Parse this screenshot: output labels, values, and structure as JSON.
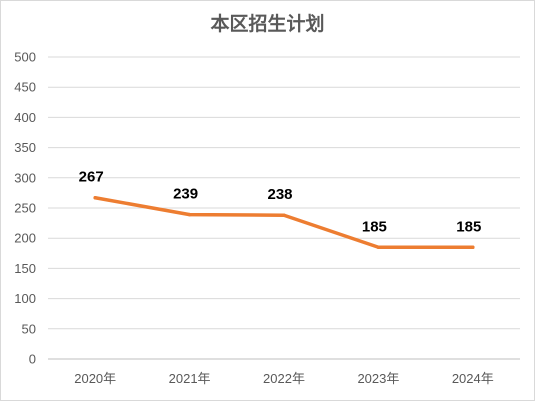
{
  "chart_data": {
    "type": "line",
    "title": "本区招生计划",
    "categories": [
      "2020年",
      "2021年",
      "2022年",
      "2023年",
      "2024年"
    ],
    "series": [
      {
        "values": [
          267,
          239,
          238,
          185,
          185
        ],
        "color": "#ed7d31"
      }
    ],
    "ylim": [
      0,
      500
    ],
    "yticks": [
      0,
      50,
      100,
      150,
      200,
      250,
      300,
      350,
      400,
      450,
      500
    ],
    "data_labels": [
      "267",
      "239",
      "238",
      "185",
      "185"
    ],
    "grid": true,
    "legend": "none"
  }
}
